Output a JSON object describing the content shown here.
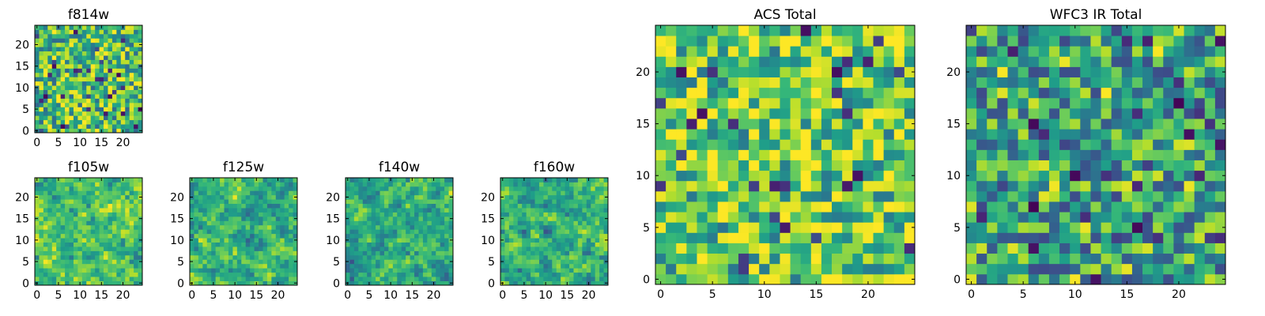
{
  "chart_data": [
    {
      "type": "heatmap",
      "title": "f814w",
      "grid_size": 25,
      "xlim": [
        0,
        24
      ],
      "ylim": [
        0,
        24
      ],
      "xticks": [
        0,
        5,
        10,
        15,
        20
      ],
      "yticks": [
        0,
        5,
        10,
        15,
        20
      ],
      "xtick_labels": [
        "0",
        "5",
        "10",
        "15",
        "20"
      ],
      "ytick_labels": [
        "0",
        "5",
        "10",
        "15",
        "20"
      ],
      "colormap": "viridis",
      "texture_seed": 814,
      "texture_bias": 0.68,
      "texture_smoothing": 0
    },
    {
      "type": "heatmap",
      "title": "f105w",
      "grid_size": 25,
      "xlim": [
        0,
        24
      ],
      "ylim": [
        0,
        24
      ],
      "xticks": [
        0,
        5,
        10,
        15,
        20
      ],
      "yticks": [
        0,
        5,
        10,
        15,
        20
      ],
      "xtick_labels": [
        "0",
        "5",
        "10",
        "15",
        "20"
      ],
      "ytick_labels": [
        "0",
        "5",
        "10",
        "15",
        "20"
      ],
      "colormap": "viridis",
      "texture_seed": 105,
      "texture_bias": 0.72,
      "texture_smoothing": 1
    },
    {
      "type": "heatmap",
      "title": "f125w",
      "grid_size": 25,
      "xlim": [
        0,
        24
      ],
      "ylim": [
        0,
        24
      ],
      "xticks": [
        0,
        5,
        10,
        15,
        20
      ],
      "yticks": [
        0,
        5,
        10,
        15,
        20
      ],
      "xtick_labels": [
        "0",
        "5",
        "10",
        "15",
        "20"
      ],
      "ytick_labels": [
        "0",
        "5",
        "10",
        "15",
        "20"
      ],
      "colormap": "viridis",
      "texture_seed": 125,
      "texture_bias": 0.66,
      "texture_smoothing": 1
    },
    {
      "type": "heatmap",
      "title": "f140w",
      "grid_size": 25,
      "xlim": [
        0,
        24
      ],
      "ylim": [
        0,
        24
      ],
      "xticks": [
        0,
        5,
        10,
        15,
        20
      ],
      "yticks": [
        0,
        5,
        10,
        15,
        20
      ],
      "xtick_labels": [
        "0",
        "5",
        "10",
        "15",
        "20"
      ],
      "ytick_labels": [
        "0",
        "5",
        "10",
        "15",
        "20"
      ],
      "colormap": "viridis",
      "texture_seed": 140,
      "texture_bias": 0.62,
      "texture_smoothing": 1
    },
    {
      "type": "heatmap",
      "title": "f160w",
      "grid_size": 25,
      "xlim": [
        0,
        24
      ],
      "ylim": [
        0,
        24
      ],
      "xticks": [
        0,
        5,
        10,
        15,
        20
      ],
      "yticks": [
        0,
        5,
        10,
        15,
        20
      ],
      "xtick_labels": [
        "0",
        "5",
        "10",
        "15",
        "20"
      ],
      "ytick_labels": [
        "0",
        "5",
        "10",
        "15",
        "20"
      ],
      "colormap": "viridis",
      "texture_seed": 160,
      "texture_bias": 0.64,
      "texture_smoothing": 1
    },
    {
      "type": "heatmap",
      "title": "ACS Total",
      "grid_size": 25,
      "xlim": [
        0,
        24
      ],
      "ylim": [
        0,
        24
      ],
      "xticks": [
        0,
        5,
        10,
        15,
        20
      ],
      "yticks": [
        0,
        5,
        10,
        15,
        20
      ],
      "xtick_labels": [
        "0",
        "5",
        "10",
        "15",
        "20"
      ],
      "ytick_labels": [
        "0",
        "5",
        "10",
        "15",
        "20"
      ],
      "colormap": "viridis",
      "texture_seed": 4242,
      "texture_bias": 0.74,
      "texture_smoothing": 0
    },
    {
      "type": "heatmap",
      "title": "WFC3 IR Total",
      "grid_size": 25,
      "xlim": [
        0,
        24
      ],
      "ylim": [
        0,
        24
      ],
      "xticks": [
        0,
        5,
        10,
        15,
        20
      ],
      "yticks": [
        0,
        5,
        10,
        15,
        20
      ],
      "xtick_labels": [
        "0",
        "5",
        "10",
        "15",
        "20"
      ],
      "ytick_labels": [
        "0",
        "5",
        "10",
        "15",
        "20"
      ],
      "colormap": "viridis",
      "texture_seed": 3131,
      "texture_bias": 0.56,
      "texture_smoothing": 0
    }
  ]
}
